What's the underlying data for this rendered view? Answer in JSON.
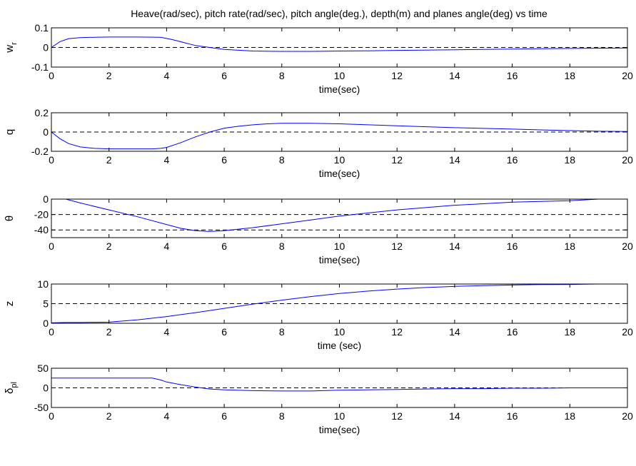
{
  "figure": {
    "title": "Heave(rad/sec), pitch rate(rad/sec), pitch angle(deg.), depth(m) and planes angle(deg) vs time",
    "series_color": "#0000ff",
    "grid_color": "#000000"
  },
  "chart_data": [
    {
      "type": "line",
      "title": "Heave(rad/sec), pitch rate(rad/sec), pitch angle(deg.), depth(m) and planes angle(deg) vs time",
      "xlabel": "time(sec)",
      "ylabel": "w",
      "ylabel_subscript": "r",
      "xlim": [
        0,
        20
      ],
      "ylim": [
        -0.1,
        0.1
      ],
      "xticks": [
        0,
        2,
        4,
        6,
        8,
        10,
        12,
        14,
        16,
        18,
        20
      ],
      "yticks": [
        -0.1,
        0,
        0.1
      ],
      "ytick_labels": [
        "-0.1",
        "0",
        "0.1"
      ],
      "grid_lines_y": [
        0
      ],
      "series": [
        {
          "x": [
            0,
            0.3,
            0.6,
            1,
            1.5,
            2,
            3,
            3.8,
            4.2,
            4.6,
            5,
            5.5,
            6,
            7,
            8,
            9,
            10,
            11,
            12,
            14,
            16,
            18,
            20
          ],
          "y": [
            0,
            0.03,
            0.045,
            0.05,
            0.052,
            0.053,
            0.053,
            0.052,
            0.04,
            0.025,
            0.01,
            0,
            -0.01,
            -0.018,
            -0.02,
            -0.02,
            -0.018,
            -0.017,
            -0.015,
            -0.012,
            -0.008,
            -0.005,
            -0.003
          ]
        }
      ]
    },
    {
      "type": "line",
      "xlabel": "time(sec)",
      "ylabel": "q",
      "xlim": [
        0,
        20
      ],
      "ylim": [
        -0.2,
        0.2
      ],
      "xticks": [
        0,
        2,
        4,
        6,
        8,
        10,
        12,
        14,
        16,
        18,
        20
      ],
      "yticks": [
        -0.2,
        0,
        0.2
      ],
      "ytick_labels": [
        "-0.2",
        "0",
        "0.2"
      ],
      "grid_lines_y": [
        0
      ],
      "series": [
        {
          "x": [
            0,
            0.3,
            0.6,
            1,
            1.5,
            2,
            2.5,
            3,
            3.5,
            3.8,
            4,
            4.5,
            5,
            5.5,
            6,
            6.5,
            7,
            7.5,
            8,
            9,
            10,
            11,
            12,
            13,
            14,
            15,
            16,
            17,
            18,
            19,
            20
          ],
          "y": [
            0,
            -0.07,
            -0.12,
            -0.155,
            -0.17,
            -0.175,
            -0.175,
            -0.175,
            -0.175,
            -0.17,
            -0.16,
            -0.11,
            -0.05,
            0,
            0.04,
            0.06,
            0.075,
            0.085,
            0.09,
            0.09,
            0.085,
            0.075,
            0.065,
            0.055,
            0.045,
            0.038,
            0.03,
            0.022,
            0.015,
            0.008,
            0.005
          ]
        }
      ]
    },
    {
      "type": "line",
      "xlabel": "time(sec)",
      "ylabel": "θ",
      "xlim": [
        0,
        20
      ],
      "ylim": [
        -50,
        0
      ],
      "xticks": [
        0,
        2,
        4,
        6,
        8,
        10,
        12,
        14,
        16,
        18,
        20
      ],
      "yticks": [
        -40,
        -20,
        0
      ],
      "ytick_labels": [
        "-40",
        "-20",
        "0"
      ],
      "grid_lines_y": [
        -20,
        -40
      ],
      "series": [
        {
          "x": [
            0,
            0.5,
            1,
            2,
            3,
            4,
            4.5,
            5,
            5.5,
            6,
            7,
            8,
            9,
            10,
            11,
            12,
            13,
            14,
            15,
            16,
            17,
            18,
            18.5,
            19,
            20
          ],
          "y": [
            0,
            0,
            -5,
            -14,
            -23,
            -33,
            -38,
            -41,
            -42,
            -41,
            -37,
            -32,
            -27,
            -22,
            -18,
            -14,
            -11,
            -8,
            -6,
            -4,
            -3,
            -2,
            -1,
            0,
            0
          ]
        }
      ]
    },
    {
      "type": "line",
      "xlabel": "time (sec)",
      "ylabel": "z",
      "xlim": [
        0,
        20
      ],
      "ylim": [
        0,
        10
      ],
      "xticks": [
        0,
        2,
        4,
        6,
        8,
        10,
        12,
        14,
        16,
        18,
        20
      ],
      "yticks": [
        0,
        5,
        10
      ],
      "ytick_labels": [
        "0",
        "5",
        "10"
      ],
      "grid_lines_y": [
        5,
        10
      ],
      "series": [
        {
          "x": [
            0,
            0.5,
            1,
            1.5,
            2,
            3,
            4,
            5,
            6,
            7,
            8,
            9,
            10,
            11,
            12,
            13,
            14,
            15,
            16,
            17,
            18,
            18.5,
            19,
            20
          ],
          "y": [
            0.1,
            0.2,
            0.2,
            0.25,
            0.3,
            0.9,
            1.7,
            2.7,
            3.8,
            4.9,
            5.9,
            6.8,
            7.6,
            8.2,
            8.7,
            9.1,
            9.4,
            9.6,
            9.75,
            9.85,
            9.9,
            9.95,
            10,
            10
          ]
        }
      ]
    },
    {
      "type": "line",
      "xlabel": "time(sec)",
      "ylabel": "δ",
      "ylabel_subscript": "pl",
      "xlim": [
        0,
        20
      ],
      "ylim": [
        -50,
        50
      ],
      "xticks": [
        0,
        2,
        4,
        6,
        8,
        10,
        12,
        14,
        16,
        18,
        20
      ],
      "yticks": [
        -50,
        0,
        50
      ],
      "ytick_labels": [
        "-50",
        "0",
        "50"
      ],
      "grid_lines_y": [
        0
      ],
      "series": [
        {
          "x": [
            0,
            1,
            2,
            3,
            3.5,
            3.8,
            4,
            4.5,
            5,
            5.5,
            6,
            7,
            8,
            9,
            10,
            11,
            12,
            13,
            14,
            15,
            16,
            17,
            18,
            19,
            20
          ],
          "y": [
            25,
            25,
            25,
            25,
            25,
            20,
            15,
            8,
            2,
            -3,
            -5,
            -7,
            -8,
            -8,
            -6,
            -5,
            -4,
            -3,
            -2,
            -2,
            -1,
            -1,
            0,
            0,
            0
          ]
        }
      ]
    }
  ]
}
